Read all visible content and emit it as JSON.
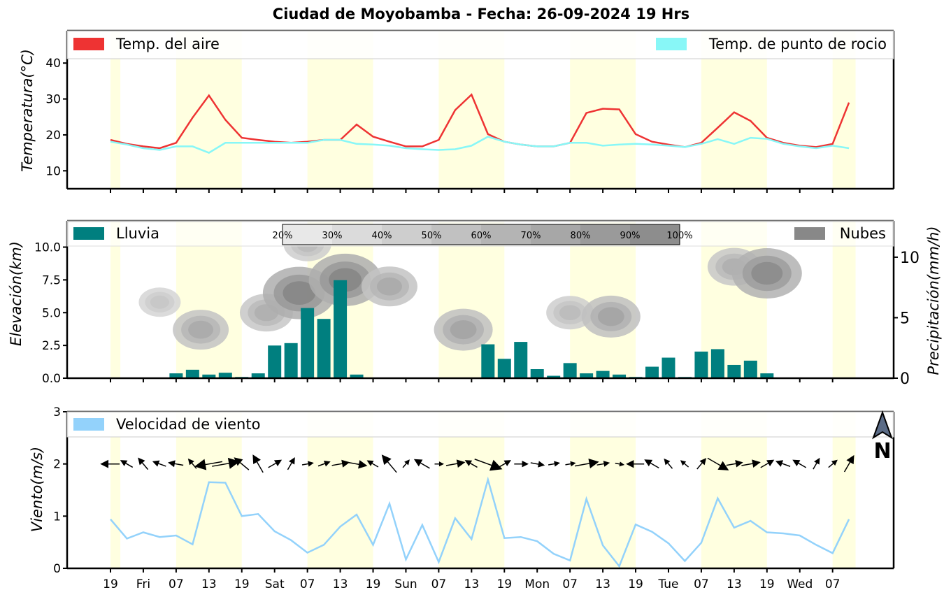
{
  "title": "Ciudad de Moyobamba   -   Fecha: 26-09-2024 19 Hrs",
  "colors": {
    "air_temp": "#ee3333",
    "dew_point": "#88f7f7",
    "rain": "#007f7f",
    "clouds": "#888888",
    "wind": "#93d2fb",
    "daytime_band": "#ffffe0"
  },
  "x_ticks": {
    "labels": [
      "19",
      "Fri",
      "07",
      "13",
      "19",
      "Sat",
      "07",
      "13",
      "19",
      "Sun",
      "07",
      "13",
      "19",
      "Mon",
      "07",
      "13",
      "19",
      "Tue",
      "07",
      "13",
      "19",
      "Wed",
      "07"
    ]
  },
  "chart_data": [
    {
      "type": "line",
      "ylabel": "Temperatura(°C)",
      "ylim": [
        5,
        49
      ],
      "yticks": [
        "10",
        "20",
        "30",
        "40"
      ],
      "legend_left": "Temp. del aire",
      "legend_right": "Temp. de punto de rocio",
      "series": [
        {
          "name": "Temp. del aire",
          "values": [
            18.6,
            17.5,
            16.8,
            16.3,
            17.8,
            24.8,
            31.0,
            24.2,
            19.2,
            18.6,
            18.1,
            17.8,
            18.1,
            18.6,
            18.6,
            22.9,
            19.5,
            18.1,
            16.8,
            16.8,
            18.6,
            26.9,
            31.2,
            20.2,
            18.1,
            17.3,
            16.8,
            16.8,
            17.8,
            26.1,
            27.3,
            27.1,
            20.2,
            18.1,
            17.3,
            16.6,
            17.8,
            22.0,
            26.3,
            23.9,
            19.2,
            17.8,
            17.0,
            16.6,
            17.5,
            29.0
          ]
        },
        {
          "name": "Temp. de punto de rocio",
          "values": [
            18.1,
            17.3,
            16.3,
            15.8,
            16.8,
            16.8,
            15.0,
            17.8,
            17.8,
            17.8,
            17.8,
            17.8,
            17.8,
            18.6,
            18.6,
            17.5,
            17.3,
            17.0,
            16.3,
            16.0,
            15.8,
            16.0,
            17.0,
            19.5,
            18.1,
            17.3,
            16.8,
            16.8,
            17.8,
            17.8,
            17.0,
            17.3,
            17.5,
            17.3,
            17.0,
            16.6,
            17.5,
            18.8,
            17.5,
            19.2,
            18.9,
            17.5,
            16.8,
            16.3,
            17.0,
            16.3
          ]
        }
      ]
    },
    {
      "type": "bar",
      "ylabel_left": "Elevación(km)",
      "ylabel_right": "Precipitación(mm/h)",
      "ylim_left": [
        0,
        12
      ],
      "yticks_left": [
        "0.0",
        "2.5",
        "5.0",
        "7.5",
        "10.0"
      ],
      "ylim_right": [
        0,
        13
      ],
      "yticks_right": [
        "0",
        "5",
        "10"
      ],
      "legend_left": "Lluvia",
      "legend_right": "Nubes",
      "colorbar_labels": [
        "20%",
        "30%",
        "40%",
        "50%",
        "60%",
        "70%",
        "80%",
        "90%",
        "100%"
      ],
      "series": [
        {
          "name": "Lluvia",
          "values": [
            0,
            0,
            0,
            0,
            0.4,
            0.7,
            0.3,
            0.45,
            0.1,
            0.4,
            2.7,
            2.9,
            5.8,
            4.9,
            8.1,
            0.3,
            0.05,
            0,
            0,
            0,
            0,
            0,
            0,
            2.8,
            1.6,
            3.0,
            0.75,
            0.2,
            1.25,
            0.4,
            0.6,
            0.3,
            0.1,
            0.95,
            1.7,
            0.1,
            2.2,
            2.4,
            1.1,
            1.45,
            0.4,
            0,
            0,
            0,
            0,
            0
          ]
        }
      ],
      "cloud_blobs_km": [
        {
          "center_index": 3,
          "elev": 5.8,
          "level": 0.3
        },
        {
          "center_index": 5.5,
          "elev": 3.7,
          "level": 0.55
        },
        {
          "center_index": 9.5,
          "elev": 5.0,
          "level": 0.5
        },
        {
          "center_index": 11.5,
          "elev": 6.5,
          "level": 0.85
        },
        {
          "center_index": 14.3,
          "elev": 7.5,
          "level": 0.85
        },
        {
          "center_index": 17,
          "elev": 7.0,
          "level": 0.55
        },
        {
          "center_index": 21.5,
          "elev": 3.7,
          "level": 0.6
        },
        {
          "center_index": 28,
          "elev": 5.0,
          "level": 0.4
        },
        {
          "center_index": 30.5,
          "elev": 4.7,
          "level": 0.6
        },
        {
          "center_index": 38,
          "elev": 8.5,
          "level": 0.5
        },
        {
          "center_index": 40,
          "elev": 8.0,
          "level": 0.8
        },
        {
          "center_index": 12,
          "elev": 10.2,
          "level": 0.4
        }
      ]
    },
    {
      "type": "line",
      "ylabel": "Viento(m/s)",
      "ylim": [
        0,
        3
      ],
      "yticks": [
        "0",
        "1",
        "2",
        "3"
      ],
      "legend": "Velocidad de viento",
      "north_label": "N",
      "series": [
        {
          "name": "Velocidad de viento",
          "values": [
            0.94,
            0.57,
            0.69,
            0.6,
            0.63,
            0.46,
            1.65,
            1.64,
            1.0,
            1.04,
            0.71,
            0.54,
            0.3,
            0.45,
            0.8,
            1.03,
            0.45,
            1.24,
            0.17,
            0.83,
            0.12,
            0.96,
            0.56,
            1.7,
            0.58,
            0.6,
            0.52,
            0.28,
            0.15,
            1.33,
            0.44,
            0.04,
            0.84,
            0.7,
            0.48,
            0.14,
            0.49,
            1.34,
            0.78,
            0.91,
            0.69,
            0.67,
            0.63,
            0.45,
            0.29,
            0.94
          ]
        }
      ],
      "wind_direction_deg": [
        270,
        300,
        320,
        290,
        280,
        320,
        260,
        80,
        310,
        330,
        60,
        30,
        80,
        70,
        80,
        100,
        300,
        320,
        40,
        300,
        90,
        80,
        300,
        110,
        60,
        90,
        100,
        80,
        80,
        80,
        80,
        100,
        270,
        300,
        320,
        310,
        40,
        120,
        80,
        80,
        60,
        290,
        300,
        30,
        50,
        30
      ],
      "wind_arrow_size": [
        0.9,
        0.5,
        0.6,
        0.5,
        0.6,
        0.4,
        1.6,
        1.6,
        0.9,
        1.0,
        0.6,
        0.5,
        0.3,
        0.4,
        0.8,
        1.0,
        0.4,
        1.2,
        0.2,
        0.8,
        0.1,
        0.9,
        0.5,
        1.7,
        0.5,
        0.5,
        0.5,
        0.3,
        0.2,
        1.3,
        0.4,
        0.1,
        0.8,
        0.7,
        0.4,
        0.2,
        0.5,
        1.3,
        0.7,
        0.9,
        0.6,
        0.6,
        0.6,
        0.4,
        0.3,
        0.9
      ]
    }
  ]
}
